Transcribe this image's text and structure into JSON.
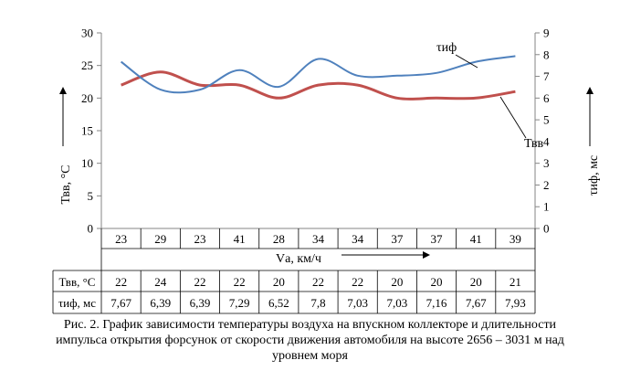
{
  "chart_data": {
    "type": "line",
    "categories": [
      "23",
      "29",
      "23",
      "41",
      "28",
      "34",
      "34",
      "37",
      "37",
      "41",
      "39"
    ],
    "series": [
      {
        "name": "Твв",
        "axis": "left",
        "color": "#c0504d",
        "values": [
          22,
          24,
          22,
          22,
          20,
          22,
          22,
          20,
          20,
          20,
          21
        ]
      },
      {
        "name": "τиф",
        "axis": "right",
        "color": "#4f81bd",
        "values": [
          7.67,
          6.39,
          6.39,
          7.29,
          6.52,
          7.8,
          7.03,
          7.03,
          7.16,
          7.67,
          7.93
        ]
      }
    ],
    "left_axis": {
      "label": "Твв, °C",
      "min": 0,
      "max": 30,
      "ticks": [
        0,
        5,
        10,
        15,
        20,
        25,
        30
      ]
    },
    "right_axis": {
      "label": "τиф, мс",
      "min": 0,
      "max": 9,
      "ticks": [
        0,
        1,
        2,
        3,
        4,
        5,
        6,
        7,
        8,
        9
      ]
    },
    "xlabel": "Vа, км/ч",
    "series_labels": {
      "tau": "τиф",
      "temp": "Твв"
    },
    "table": {
      "row_labels": [
        "Твв, °C",
        "τиф, мс"
      ],
      "rows": [
        [
          "22",
          "24",
          "22",
          "22",
          "20",
          "22",
          "22",
          "20",
          "20",
          "20",
          "21"
        ],
        [
          "7,67",
          "6,39",
          "6,39",
          "7,29",
          "6,52",
          "7,8",
          "7,03",
          "7,03",
          "7,16",
          "7,67",
          "7,93"
        ]
      ]
    },
    "grid": false,
    "legend": "none"
  },
  "caption": {
    "line1": "Рис. 2. График зависимости температуры воздуха на впускном коллекторе и длительности",
    "line2": "импульса открытия форсунок от скорости движения автомобиля на высоте 2656 – 3031 м над",
    "line3": "уровнем моря"
  }
}
